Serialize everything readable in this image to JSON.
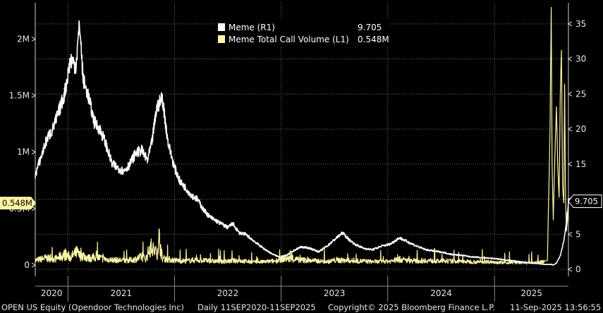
{
  "footer": {
    "security": "OPEN US Equity (Opendoor Technologies Inc)",
    "range": "Daily 11SEP2020-11SEP2025",
    "copyright": "Copyright© 2025 Bloomberg Finance L.P.",
    "timestamp": "11-Sep-2025 13:56:55"
  },
  "colors": {
    "background": "#000000",
    "grid": "#6e6e6e",
    "price": "#ffffff",
    "volume": "#fff6a8",
    "volume_marker": "#fff2a0"
  },
  "chart_data": {
    "type": "line",
    "title": "",
    "legend": {
      "placement": "top-center",
      "entries": [
        {
          "label": "Meme  (R1)",
          "value": "9.705",
          "color": "#ffffff"
        },
        {
          "label": "Meme Total Call Volume (L1)",
          "value": "0.548M",
          "color": "#fff6a8"
        }
      ]
    },
    "x_axis": {
      "years": [
        "2020",
        "2021",
        "2022",
        "2023",
        "2024",
        "2025"
      ],
      "range": [
        "2020-09-11",
        "2025-09-11"
      ]
    },
    "left_axis": {
      "ticks": [
        {
          "v": 0,
          "label": "0"
        },
        {
          "v": 500000,
          "label": "0.5M"
        },
        {
          "v": 1000000,
          "label": "1M"
        },
        {
          "v": 1500000,
          "label": "1.5M"
        },
        {
          "v": 2000000,
          "label": "2M"
        }
      ],
      "range": [
        -100000,
        2320000
      ],
      "last_value_label": "0.548M",
      "last_value": 548000
    },
    "right_axis": {
      "ticks": [
        {
          "v": 0,
          "label": "0"
        },
        {
          "v": 5,
          "label": "5"
        },
        {
          "v": 10,
          "label": "10"
        },
        {
          "v": 15,
          "label": "15"
        },
        {
          "v": 20,
          "label": "20"
        },
        {
          "v": 25,
          "label": "25"
        },
        {
          "v": 30,
          "label": "30"
        },
        {
          "v": 35,
          "label": "35"
        }
      ],
      "range": [
        -1.0,
        38.0
      ],
      "last_value_label": "9.705",
      "last_value": 9.705
    },
    "series": [
      {
        "name": "Meme  (R1)",
        "axis": "right",
        "x": [
          "2020-09-11",
          "2020-10-01",
          "2020-10-20",
          "2020-11-10",
          "2020-12-01",
          "2020-12-20",
          "2021-01-10",
          "2021-01-28",
          "2021-02-10",
          "2021-02-22",
          "2021-03-10",
          "2021-04-01",
          "2021-04-20",
          "2021-05-10",
          "2021-06-01",
          "2021-06-20",
          "2021-07-10",
          "2021-08-01",
          "2021-08-20",
          "2021-09-10",
          "2021-09-30",
          "2021-10-15",
          "2021-11-01",
          "2021-11-20",
          "2021-12-10",
          "2022-01-01",
          "2022-01-20",
          "2022-02-10",
          "2022-03-01",
          "2022-03-20",
          "2022-04-10",
          "2022-05-01",
          "2022-05-20",
          "2022-06-10",
          "2022-07-01",
          "2022-07-20",
          "2022-08-10",
          "2022-09-01",
          "2022-10-01",
          "2022-11-01",
          "2022-12-01",
          "2022-12-28",
          "2023-01-20",
          "2023-02-15",
          "2023-03-10",
          "2023-04-10",
          "2023-05-10",
          "2023-06-10",
          "2023-07-10",
          "2023-07-31",
          "2023-08-20",
          "2023-09-10",
          "2023-10-10",
          "2023-11-10",
          "2023-12-10",
          "2024-01-10",
          "2024-02-10",
          "2024-03-10",
          "2024-04-10",
          "2024-05-10",
          "2024-06-10",
          "2024-07-10",
          "2024-08-10",
          "2024-09-10",
          "2024-10-10",
          "2024-11-10",
          "2024-12-10",
          "2025-01-10",
          "2025-02-10",
          "2025-03-10",
          "2025-04-10",
          "2025-05-10",
          "2025-06-01",
          "2025-06-20",
          "2025-07-05",
          "2025-07-15",
          "2025-07-21",
          "2025-08-01",
          "2025-08-15",
          "2025-08-28",
          "2025-09-05",
          "2025-09-11"
        ],
        "values": [
          13.5,
          16.0,
          18.5,
          20.0,
          22.5,
          25.0,
          30.0,
          29.0,
          35.0,
          27.0,
          25.0,
          21.0,
          20.0,
          18.0,
          15.0,
          14.5,
          14.0,
          15.0,
          16.5,
          17.0,
          15.5,
          18.0,
          23.0,
          24.5,
          18.0,
          14.5,
          12.5,
          11.5,
          10.5,
          10.0,
          8.5,
          7.5,
          7.0,
          6.5,
          6.0,
          6.5,
          5.2,
          5.0,
          4.0,
          3.0,
          2.2,
          1.7,
          2.0,
          2.7,
          3.2,
          3.0,
          2.5,
          3.4,
          4.5,
          5.2,
          4.3,
          3.6,
          3.0,
          2.8,
          3.3,
          3.6,
          4.5,
          3.9,
          3.3,
          2.8,
          2.6,
          2.4,
          2.1,
          2.0,
          1.8,
          1.7,
          1.6,
          1.5,
          1.3,
          1.2,
          1.0,
          0.9,
          0.8,
          0.7,
          0.7,
          0.7,
          0.6,
          0.9,
          2.0,
          4.5,
          7.0,
          9.705
        ]
      },
      {
        "name": "Meme Total Call Volume (L1)",
        "axis": "left",
        "x": [
          "2020-09-11",
          "2020-10-15",
          "2020-11-20",
          "2020-12-20",
          "2021-01-10",
          "2021-02-01",
          "2021-02-10",
          "2021-02-20",
          "2021-03-10",
          "2021-04-10",
          "2021-05-10",
          "2021-06-10",
          "2021-07-10",
          "2021-08-10",
          "2021-09-10",
          "2021-09-25",
          "2021-10-10",
          "2021-11-01",
          "2021-11-10",
          "2021-11-20",
          "2021-12-10",
          "2022-01-10",
          "2022-02-10",
          "2022-03-10",
          "2022-04-10",
          "2022-05-10",
          "2022-06-10",
          "2022-07-10",
          "2022-08-10",
          "2022-09-10",
          "2022-10-10",
          "2022-11-10",
          "2022-12-10",
          "2023-01-10",
          "2023-02-10",
          "2023-03-10",
          "2023-04-10",
          "2023-05-10",
          "2023-06-10",
          "2023-07-10",
          "2023-08-10",
          "2023-09-10",
          "2023-10-10",
          "2023-11-10",
          "2023-12-10",
          "2024-01-10",
          "2024-02-10",
          "2024-03-10",
          "2024-04-10",
          "2024-05-10",
          "2024-06-10",
          "2024-07-10",
          "2024-08-10",
          "2024-09-10",
          "2024-10-10",
          "2024-11-10",
          "2024-12-10",
          "2025-01-10",
          "2025-02-10",
          "2025-03-10",
          "2025-04-10",
          "2025-05-10",
          "2025-06-10",
          "2025-07-01",
          "2025-07-10",
          "2025-07-14",
          "2025-07-17",
          "2025-07-21",
          "2025-07-24",
          "2025-07-28",
          "2025-08-01",
          "2025-08-05",
          "2025-08-10",
          "2025-08-14",
          "2025-08-18",
          "2025-08-22",
          "2025-08-26",
          "2025-08-29",
          "2025-09-01",
          "2025-09-04",
          "2025-09-08",
          "2025-09-11"
        ],
        "values": [
          40000,
          60000,
          55000,
          90000,
          70000,
          110000,
          80000,
          90000,
          60000,
          70000,
          50000,
          45000,
          40000,
          45000,
          70000,
          55000,
          160000,
          100000,
          240000,
          60000,
          50000,
          40000,
          35000,
          45000,
          40000,
          35000,
          30000,
          35000,
          40000,
          30000,
          25000,
          30000,
          35000,
          60000,
          50000,
          45000,
          40000,
          35000,
          30000,
          45000,
          40000,
          35000,
          35000,
          30000,
          30000,
          35000,
          50000,
          40000,
          35000,
          40000,
          35000,
          30000,
          35000,
          30000,
          30000,
          25000,
          30000,
          25000,
          20000,
          25000,
          20000,
          20000,
          25000,
          40000,
          1200000,
          2280000,
          900000,
          400000,
          700000,
          1100000,
          1400000,
          900000,
          600000,
          1500000,
          1900000,
          700000,
          550000,
          1600000,
          600000,
          300000,
          400000,
          548000
        ]
      }
    ]
  }
}
